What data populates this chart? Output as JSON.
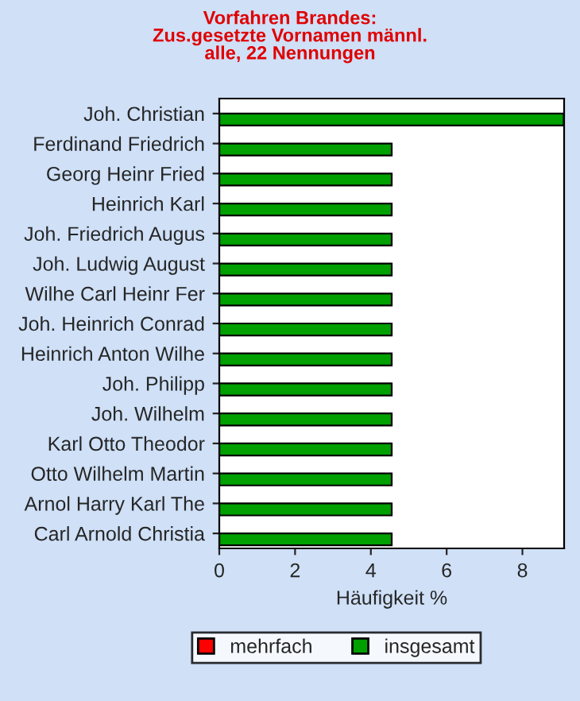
{
  "chart_data": {
    "type": "bar",
    "orientation": "horizontal",
    "title": "Vorfahren Brandes:\nZus.gesetzte Vornamen männl.\nalle, 22 Nennungen",
    "categories": [
      "Joh. Christian",
      "Ferdinand Friedrich",
      "Georg Heinr Fried",
      "Heinrich Karl",
      "Joh. Friedrich Augus",
      "Joh. Ludwig August",
      "Wilhe Carl Heinr Fer",
      "Joh. Heinrich Conrad",
      "Heinrich Anton Wilhe",
      "Joh. Philipp",
      "Joh. Wilhelm",
      "Karl Otto Theodor",
      "Otto Wilhelm Martin",
      "Arnol Harry Karl The",
      "Carl Arnold Christia"
    ],
    "series": [
      {
        "name": "mehrfach",
        "color": "#ff0000",
        "values": [
          null,
          null,
          null,
          null,
          null,
          null,
          null,
          null,
          null,
          null,
          null,
          null,
          null,
          null,
          null
        ]
      },
      {
        "name": "insgesamt",
        "color": "#00a000",
        "values": [
          9.09,
          4.55,
          4.55,
          4.55,
          4.55,
          4.55,
          4.55,
          4.55,
          4.55,
          4.55,
          4.55,
          4.55,
          4.55,
          4.55,
          4.55
        ]
      }
    ],
    "xlabel": "Häufigkeit %",
    "xlim": [
      0,
      9.1
    ],
    "xticks": [
      0,
      2,
      4,
      6,
      8
    ],
    "legend": "bottom",
    "grid": false
  }
}
